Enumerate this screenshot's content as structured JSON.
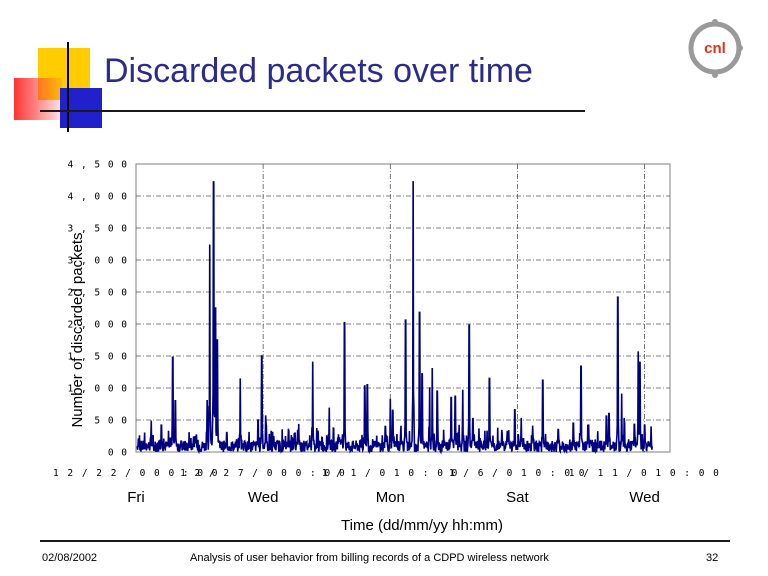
{
  "slide": {
    "title": "Discarded packets over time",
    "footer_date": "02/08/2002",
    "footer_text": "Analysis of user behavior from billing records of a CDPD wireless network",
    "page_number": "32",
    "logo_text": "cnl"
  },
  "colors": {
    "title": "#2b2b8c",
    "series": "#000080",
    "rule": "#1a1a1a",
    "logo_red": "#e03020",
    "logo_grey": "#9a9a9a",
    "deco_yellow": "#ffcc00",
    "deco_red": "#ff3333",
    "deco_blue": "#2020cc"
  },
  "chart_data": {
    "type": "line",
    "xlabel": "Time (dd/mm/yy hh:mm)",
    "ylabel": "Number of discarded packets",
    "ylim": [
      0,
      4500
    ],
    "y_ticks": [
      0,
      500,
      1000,
      1500,
      2000,
      2500,
      3000,
      3500,
      4000,
      4500
    ],
    "y_tick_labels": [
      "0 0",
      "5 0 0",
      "1 , 0 0 0",
      "1 , 5 0 0",
      "2 , 0 0 0",
      "2 , 5 0 0",
      "3 , 0 0 0",
      "3 , 5 0 0",
      "4 , 0 0 0",
      "4 , 5 0 0"
    ],
    "xlim_days": [
      0,
      21
    ],
    "x_ticks": [
      {
        "day": 0,
        "label": "1 2 / 2 2 / 0 0 0 : 0 0",
        "weekday": "Fri"
      },
      {
        "day": 5,
        "label": "1 2 / 2 7 / 0 0 0 : 0 0",
        "weekday": "Wed"
      },
      {
        "day": 10,
        "label": "1 / 1 / 0 1 0 : 0 0",
        "weekday": "Mon"
      },
      {
        "day": 15,
        "label": "1 / 6 / 0 1 0 : 0 0",
        "weekday": "Sat"
      },
      {
        "day": 20,
        "label": "1 / 1 1 / 0 1 0 : 0 0",
        "weekday": "Wed"
      }
    ],
    "grid": true,
    "series": [
      {
        "peaks": [
          [
            0.1,
            200
          ],
          [
            0.6,
            480
          ],
          [
            1.0,
            420
          ],
          [
            1.45,
            1480
          ],
          [
            1.55,
            800
          ],
          [
            2.8,
            800
          ],
          [
            2.9,
            3230
          ],
          [
            3.05,
            4220
          ],
          [
            3.12,
            2250
          ],
          [
            3.2,
            1750
          ],
          [
            4.1,
            1150
          ],
          [
            4.8,
            500
          ],
          [
            4.95,
            1500
          ],
          [
            5.1,
            560
          ],
          [
            6.0,
            330
          ],
          [
            6.4,
            440
          ],
          [
            6.95,
            1400
          ],
          [
            7.6,
            680
          ],
          [
            8.0,
            220
          ],
          [
            8.2,
            2020
          ],
          [
            9.0,
            1030
          ],
          [
            9.1,
            1050
          ],
          [
            9.8,
            400
          ],
          [
            10.0,
            820
          ],
          [
            10.1,
            650
          ],
          [
            10.6,
            2060
          ],
          [
            10.9,
            4220
          ],
          [
            11.15,
            2180
          ],
          [
            11.25,
            1220
          ],
          [
            11.55,
            1000
          ],
          [
            11.65,
            1300
          ],
          [
            11.85,
            950
          ],
          [
            12.4,
            850
          ],
          [
            12.55,
            870
          ],
          [
            12.85,
            960
          ],
          [
            13.1,
            1980
          ],
          [
            13.25,
            520
          ],
          [
            13.9,
            1150
          ],
          [
            14.6,
            320
          ],
          [
            14.9,
            660
          ],
          [
            15.15,
            520
          ],
          [
            15.6,
            400
          ],
          [
            16.0,
            1120
          ],
          [
            16.6,
            350
          ],
          [
            17.2,
            450
          ],
          [
            17.5,
            1340
          ],
          [
            17.8,
            420
          ],
          [
            18.5,
            560
          ],
          [
            18.6,
            600
          ],
          [
            18.95,
            2420
          ],
          [
            19.1,
            900
          ],
          [
            19.2,
            520
          ],
          [
            19.6,
            430
          ],
          [
            19.75,
            1560
          ],
          [
            19.82,
            1400
          ],
          [
            20.0,
            420
          ]
        ]
      }
    ]
  }
}
